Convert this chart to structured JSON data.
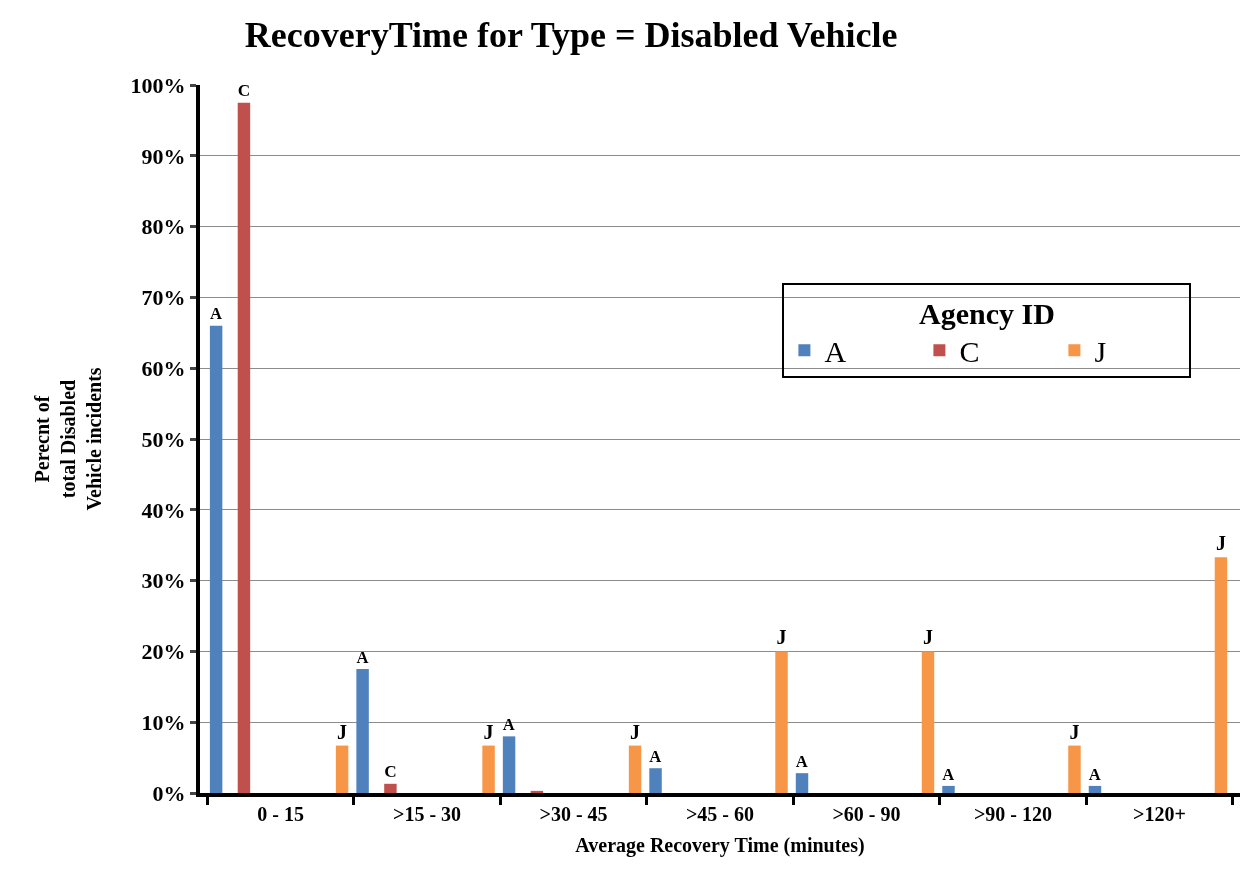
{
  "chart_data": {
    "type": "bar",
    "title": "RecoveryTime for Type = Disabled Vehicle",
    "xlabel": "Average Recovery Time (minutes)",
    "ylabel": "Perecnt of\ntotal Disabled\nVehicle incidents",
    "legend_title": "Agency ID",
    "categories": [
      "0 - 15",
      ">15 - 30",
      ">30 - 45",
      ">45 - 60",
      ">60 - 90",
      ">90 - 120",
      ">120+"
    ],
    "series": [
      {
        "name": "A",
        "color": "#4f81bd",
        "values": [
          66,
          17.5,
          8,
          3.5,
          2.8,
          1,
          1
        ],
        "value_labels": [
          "A",
          "A",
          "A",
          "A",
          "A",
          "A",
          "A"
        ]
      },
      {
        "name": "C",
        "color": "#c0504d",
        "values": [
          97.5,
          1.3,
          0.3,
          null,
          null,
          null,
          null
        ],
        "value_labels": [
          "C",
          "C",
          null,
          null,
          null,
          null,
          null
        ]
      },
      {
        "name": "J",
        "color": "#f79646",
        "values": [
          6.7,
          6.7,
          6.7,
          20,
          20,
          6.7,
          33.3
        ],
        "value_labels": [
          "J",
          "J",
          "J",
          "J",
          "J",
          "J",
          "J"
        ]
      }
    ],
    "ylim": [
      0,
      100
    ],
    "yticks": [
      {
        "value": 0,
        "label": "0%"
      },
      {
        "value": 10,
        "label": "10%"
      },
      {
        "value": 20,
        "label": "20%"
      },
      {
        "value": 30,
        "label": "30%"
      },
      {
        "value": 40,
        "label": "40%"
      },
      {
        "value": 50,
        "label": "50%"
      },
      {
        "value": 60,
        "label": "60%"
      },
      {
        "value": 70,
        "label": "70%"
      },
      {
        "value": 80,
        "label": "80%"
      },
      {
        "value": 90,
        "label": "90%"
      },
      {
        "value": 100,
        "label": "100%"
      }
    ],
    "grid": "y",
    "legend": "right"
  }
}
